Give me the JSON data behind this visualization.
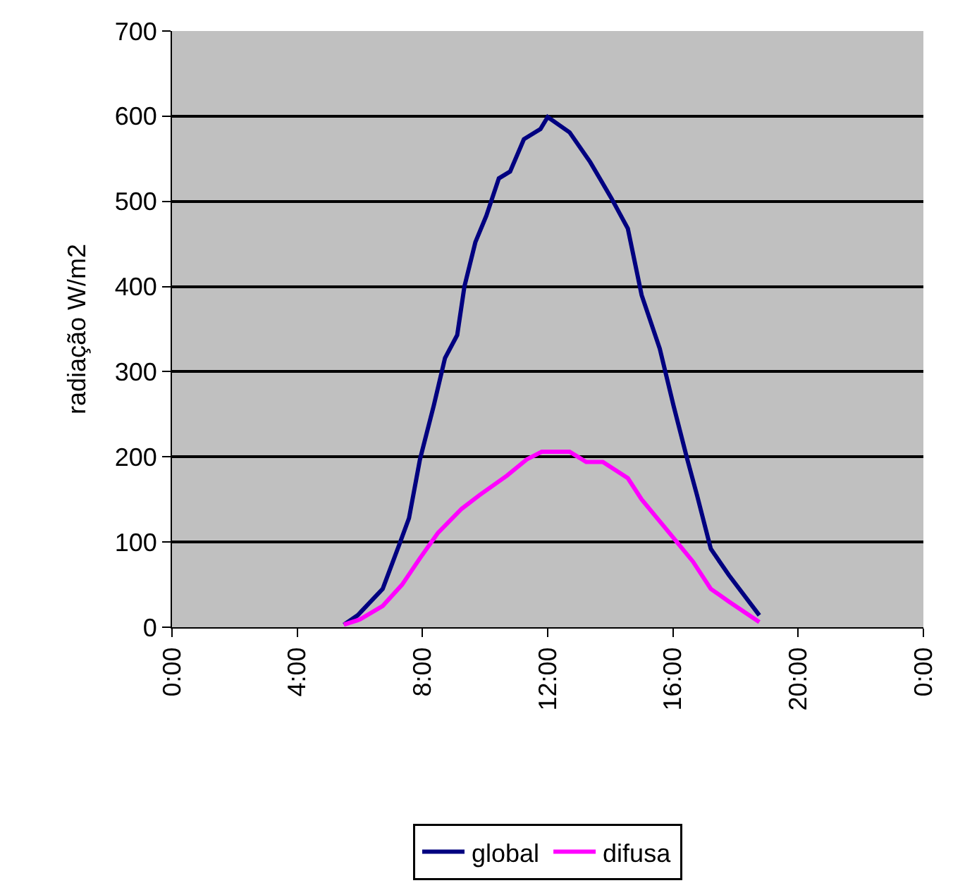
{
  "chart_data": {
    "type": "line",
    "ylabel": "radiação W/m2",
    "xlim": [
      0,
      24
    ],
    "xticks": [
      {
        "value": 0,
        "label": "0:00"
      },
      {
        "value": 4,
        "label": "4:00"
      },
      {
        "value": 8,
        "label": "8:00"
      },
      {
        "value": 12,
        "label": "12:00"
      },
      {
        "value": 16,
        "label": "16:00"
      },
      {
        "value": 20,
        "label": "20:00"
      },
      {
        "value": 24,
        "label": "0:00"
      }
    ],
    "ylim": [
      0,
      700
    ],
    "yticks": [
      0,
      100,
      200,
      300,
      400,
      500,
      600,
      700
    ],
    "grid": "y",
    "legend": "bottom",
    "marker": "none",
    "line_style": "solid",
    "series": [
      {
        "name": "global",
        "color": "#000080",
        "x": [
          5.49,
          5.93,
          6.73,
          7.26,
          7.57,
          7.92,
          8.36,
          8.72,
          9.11,
          9.34,
          9.69,
          10.04,
          10.44,
          10.8,
          11.24,
          11.77,
          12.0,
          12.7,
          13.36,
          14.03,
          14.56,
          15.0,
          15.58,
          16.02,
          16.46,
          16.77,
          17.21,
          17.79,
          18.76
        ],
        "values": [
          3,
          14,
          45,
          97,
          128,
          197,
          260,
          316,
          343,
          400,
          452,
          483,
          527,
          535,
          573,
          585,
          599,
          581,
          546,
          504,
          468,
          390,
          327,
          260,
          197,
          155,
          92,
          61,
          14
        ]
      },
      {
        "name": "difusa",
        "color": "#ff00ff",
        "x": [
          5.49,
          6.0,
          6.73,
          7.35,
          7.92,
          8.5,
          9.25,
          9.82,
          10.7,
          11.33,
          11.81,
          12.7,
          13.23,
          13.76,
          14.56,
          15.0,
          15.88,
          16.64,
          17.21,
          17.79,
          18.76
        ],
        "values": [
          3,
          9,
          25,
          50,
          81,
          111,
          139,
          155,
          178,
          197,
          206,
          206,
          194,
          194,
          175,
          150,
          111,
          77,
          45,
          30,
          6
        ]
      }
    ]
  }
}
